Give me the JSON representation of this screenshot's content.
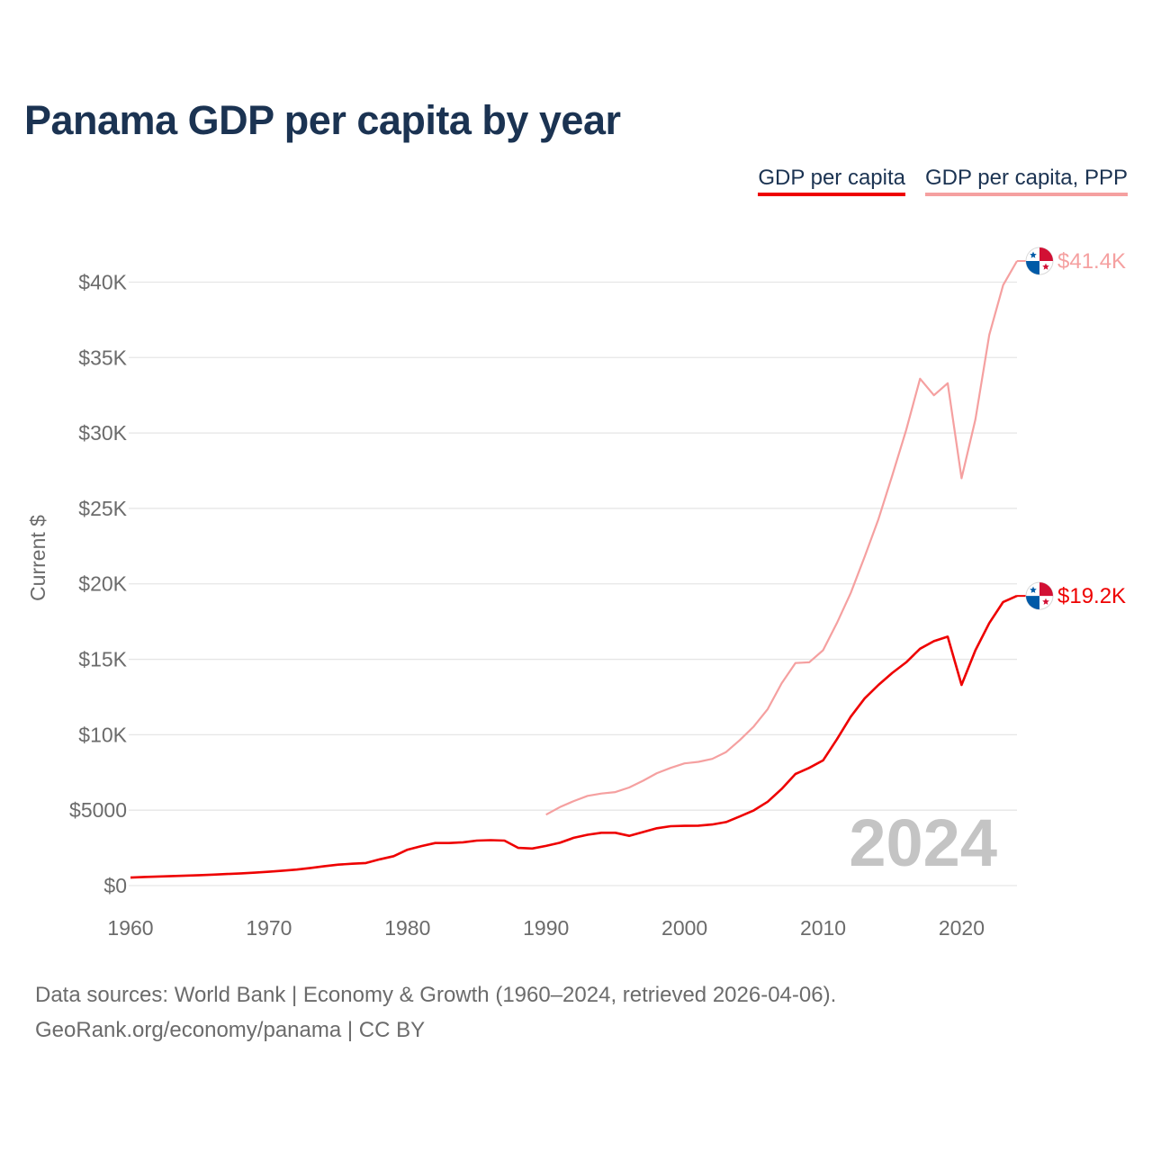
{
  "title": "Panama GDP per capita by year",
  "legend": {
    "gdp_label": "GDP per capita",
    "ppp_label": "GDP per capita, PPP"
  },
  "colors": {
    "gdp": "#ee0000",
    "ppp": "#f5a0a0",
    "title": "#1b3352",
    "axis_text": "#6b6b6b",
    "grid": "#e6e6e6",
    "year_watermark": "#c4c4c4"
  },
  "chart_data": {
    "type": "line",
    "title": "Panama GDP per capita by year",
    "xlabel": "",
    "ylabel": "Current $",
    "xlim": [
      1960,
      2024
    ],
    "ylim": [
      0,
      41400
    ],
    "x_ticks": [
      1960,
      1970,
      1980,
      1990,
      2000,
      2010,
      2020
    ],
    "x_tick_labels": [
      "1960",
      "1970",
      "1980",
      "1990",
      "2000",
      "2010",
      "2020"
    ],
    "y_ticks": [
      0,
      5000,
      10000,
      15000,
      20000,
      25000,
      30000,
      35000,
      40000
    ],
    "y_tick_labels": [
      "$0",
      "$5000",
      "$10K",
      "$15K",
      "$20K",
      "$25K",
      "$30K",
      "$35K",
      "$40K"
    ],
    "current_year": "2024",
    "series": [
      {
        "name": "GDP per capita",
        "key": "gdp",
        "end_label": "$19.2K",
        "x": [
          1960,
          1961,
          1962,
          1963,
          1964,
          1965,
          1966,
          1967,
          1968,
          1969,
          1970,
          1971,
          1972,
          1973,
          1974,
          1975,
          1976,
          1977,
          1978,
          1979,
          1980,
          1981,
          1982,
          1983,
          1984,
          1985,
          1986,
          1987,
          1988,
          1989,
          1990,
          1991,
          1992,
          1993,
          1994,
          1995,
          1996,
          1997,
          1998,
          1999,
          2000,
          2001,
          2002,
          2003,
          2004,
          2005,
          2006,
          2007,
          2008,
          2009,
          2010,
          2011,
          2012,
          2013,
          2014,
          2015,
          2016,
          2017,
          2018,
          2019,
          2020,
          2021,
          2022,
          2023,
          2024
        ],
        "values": [
          530,
          570,
          600,
          630,
          660,
          690,
          730,
          770,
          810,
          860,
          920,
          990,
          1060,
          1170,
          1290,
          1390,
          1450,
          1500,
          1740,
          1950,
          2380,
          2620,
          2820,
          2820,
          2870,
          2980,
          3010,
          2980,
          2500,
          2460,
          2630,
          2840,
          3170,
          3370,
          3500,
          3500,
          3300,
          3550,
          3800,
          3940,
          3960,
          3970,
          4050,
          4210,
          4590,
          4990,
          5560,
          6400,
          7400,
          7800,
          8300,
          9700,
          11200,
          12400,
          13300,
          14100,
          14800,
          15700,
          16200,
          16500,
          13300,
          15600,
          17400,
          18800,
          19200
        ]
      },
      {
        "name": "GDP per capita, PPP",
        "key": "ppp",
        "end_label": "$41.4K",
        "x": [
          1990,
          1991,
          1992,
          1993,
          1994,
          1995,
          1996,
          1997,
          1998,
          1999,
          2000,
          2001,
          2002,
          2003,
          2004,
          2005,
          2006,
          2007,
          2008,
          2009,
          2010,
          2011,
          2012,
          2013,
          2014,
          2015,
          2016,
          2017,
          2018,
          2019,
          2020,
          2021,
          2022,
          2023,
          2024
        ],
        "values": [
          4700,
          5200,
          5600,
          5950,
          6100,
          6200,
          6500,
          6950,
          7450,
          7800,
          8100,
          8200,
          8400,
          8850,
          9650,
          10550,
          11700,
          13400,
          14750,
          14800,
          15600,
          17400,
          19400,
          21800,
          24300,
          27200,
          30200,
          33600,
          32500,
          33300,
          27000,
          30900,
          36500,
          39800,
          41400
        ]
      }
    ]
  },
  "footer": {
    "source_line": "Data sources: World Bank | Economy & Growth (1960–2024, retrieved 2026-04-06).",
    "credit_line": "GeoRank.org/economy/panama | CC BY"
  }
}
